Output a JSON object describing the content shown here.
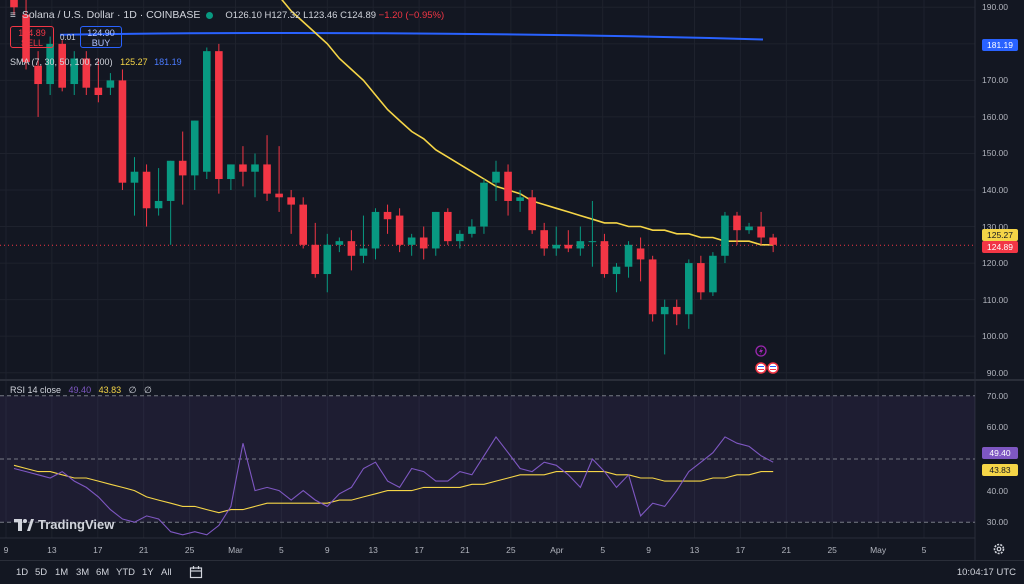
{
  "symbol": {
    "name": "Solana / U.S. Dollar · 1D · COINBASE",
    "open_label": "O",
    "open": "126.10",
    "high_label": "H",
    "high": "127.32",
    "low_label": "L",
    "low": "123.46",
    "close_label": "C",
    "close": "124.89",
    "change": "−1.20 (−0.95%)"
  },
  "trade": {
    "sell_price": "124.89",
    "sell_label": "SELL",
    "spread": "0.01",
    "buy_price": "124.90",
    "buy_label": "BUY"
  },
  "sma": {
    "label": "SMA (7, 30, 50, 100, 200)",
    "v1": "125.27",
    "v2": "181.19"
  },
  "rsi": {
    "label": "RSI 14 close",
    "v1": "49.40",
    "v2": "43.83",
    "v3": "∅",
    "v4": "∅"
  },
  "price_axis": [
    "190.00",
    "180.00",
    "170.00",
    "160.00",
    "150.00",
    "140.00",
    "130.00",
    "120.00",
    "110.00",
    "100.00",
    "90.00"
  ],
  "price_badges": {
    "sma200": "181.19",
    "sma": "125.27",
    "last": "124.89"
  },
  "rsi_axis": [
    "70.00",
    "60.00",
    "40.00",
    "30.00"
  ],
  "rsi_badges": {
    "rsi": "49.40",
    "ma": "43.83"
  },
  "time_axis": [
    "9",
    "13",
    "17",
    "21",
    "25",
    "Mar",
    "5",
    "9",
    "13",
    "17",
    "21",
    "25",
    "Apr",
    "5",
    "9",
    "13",
    "17",
    "21",
    "25",
    "May",
    "5"
  ],
  "logo": "TradingView",
  "ranges": [
    "1D",
    "5D",
    "1M",
    "3M",
    "6M",
    "YTD",
    "1Y",
    "All"
  ],
  "clock": "10:04:17 UTC",
  "colors": {
    "bg": "#131722",
    "up": "#089981",
    "down": "#f23645",
    "sma_fast": "#f5d547",
    "sma_slow": "#2962ff",
    "rsi_line": "#7e57c2",
    "rsi_ma": "#f5d547"
  },
  "chart_data": {
    "type": "candlestick",
    "ylim": [
      88,
      192
    ],
    "candles": [
      {
        "o": 203,
        "h": 205,
        "l": 188,
        "c": 190
      },
      {
        "o": 188,
        "h": 192,
        "l": 173,
        "c": 175
      },
      {
        "o": 174,
        "h": 178,
        "l": 160,
        "c": 169
      },
      {
        "o": 169,
        "h": 182,
        "l": 166,
        "c": 180
      },
      {
        "o": 180,
        "h": 181,
        "l": 167,
        "c": 168
      },
      {
        "o": 169,
        "h": 178,
        "l": 166,
        "c": 176
      },
      {
        "o": 176,
        "h": 178,
        "l": 166,
        "c": 168
      },
      {
        "o": 168,
        "h": 176,
        "l": 164,
        "c": 166
      },
      {
        "o": 168,
        "h": 172,
        "l": 166,
        "c": 170
      },
      {
        "o": 170,
        "h": 173,
        "l": 140,
        "c": 142
      },
      {
        "o": 142,
        "h": 149,
        "l": 133,
        "c": 145
      },
      {
        "o": 145,
        "h": 147,
        "l": 130,
        "c": 135
      },
      {
        "o": 135,
        "h": 146,
        "l": 133,
        "c": 137
      },
      {
        "o": 137,
        "h": 148,
        "l": 125,
        "c": 148
      },
      {
        "o": 148,
        "h": 156,
        "l": 136,
        "c": 144
      },
      {
        "o": 144,
        "h": 159,
        "l": 140,
        "c": 159
      },
      {
        "o": 145,
        "h": 179,
        "l": 143,
        "c": 178
      },
      {
        "o": 178,
        "h": 180,
        "l": 139,
        "c": 143
      },
      {
        "o": 143,
        "h": 147,
        "l": 140,
        "c": 147
      },
      {
        "o": 147,
        "h": 152,
        "l": 141,
        "c": 145
      },
      {
        "o": 145,
        "h": 150,
        "l": 138,
        "c": 147
      },
      {
        "o": 147,
        "h": 155,
        "l": 137,
        "c": 139
      },
      {
        "o": 139,
        "h": 152,
        "l": 134,
        "c": 138
      },
      {
        "o": 138,
        "h": 140,
        "l": 128,
        "c": 136
      },
      {
        "o": 136,
        "h": 138,
        "l": 124,
        "c": 125
      },
      {
        "o": 125,
        "h": 131,
        "l": 116,
        "c": 117
      },
      {
        "o": 117,
        "h": 128,
        "l": 112,
        "c": 125
      },
      {
        "o": 125,
        "h": 127,
        "l": 123,
        "c": 126
      },
      {
        "o": 126,
        "h": 129,
        "l": 118,
        "c": 122
      },
      {
        "o": 122,
        "h": 133,
        "l": 120,
        "c": 124
      },
      {
        "o": 124,
        "h": 135,
        "l": 121,
        "c": 134
      },
      {
        "o": 134,
        "h": 136,
        "l": 128,
        "c": 132
      },
      {
        "o": 133,
        "h": 135,
        "l": 123,
        "c": 125
      },
      {
        "o": 125,
        "h": 128,
        "l": 122,
        "c": 127
      },
      {
        "o": 127,
        "h": 130,
        "l": 121,
        "c": 124
      },
      {
        "o": 124,
        "h": 134,
        "l": 122,
        "c": 134
      },
      {
        "o": 134,
        "h": 135,
        "l": 125,
        "c": 126
      },
      {
        "o": 126,
        "h": 129,
        "l": 124,
        "c": 128
      },
      {
        "o": 128,
        "h": 132,
        "l": 127,
        "c": 130
      },
      {
        "o": 130,
        "h": 143,
        "l": 128,
        "c": 142
      },
      {
        "o": 142,
        "h": 148,
        "l": 137,
        "c": 145
      },
      {
        "o": 145,
        "h": 147,
        "l": 133,
        "c": 137
      },
      {
        "o": 137,
        "h": 140,
        "l": 134,
        "c": 138
      },
      {
        "o": 138,
        "h": 140,
        "l": 128,
        "c": 129
      },
      {
        "o": 129,
        "h": 131,
        "l": 122,
        "c": 124
      },
      {
        "o": 124,
        "h": 130,
        "l": 122,
        "c": 125
      },
      {
        "o": 125,
        "h": 129,
        "l": 123,
        "c": 124
      },
      {
        "o": 124,
        "h": 130,
        "l": 122,
        "c": 126
      },
      {
        "o": 126,
        "h": 137,
        "l": 119,
        "c": 126
      },
      {
        "o": 126,
        "h": 128,
        "l": 116,
        "c": 117
      },
      {
        "o": 117,
        "h": 120,
        "l": 112,
        "c": 119
      },
      {
        "o": 119,
        "h": 126,
        "l": 116,
        "c": 125
      },
      {
        "o": 124,
        "h": 127,
        "l": 115,
        "c": 121
      },
      {
        "o": 121,
        "h": 122,
        "l": 104,
        "c": 106
      },
      {
        "o": 106,
        "h": 110,
        "l": 95,
        "c": 108
      },
      {
        "o": 108,
        "h": 110,
        "l": 103,
        "c": 106
      },
      {
        "o": 106,
        "h": 121,
        "l": 102,
        "c": 120
      },
      {
        "o": 120,
        "h": 122,
        "l": 110,
        "c": 112
      },
      {
        "o": 112,
        "h": 123,
        "l": 111,
        "c": 122
      },
      {
        "o": 122,
        "h": 134,
        "l": 120,
        "c": 133
      },
      {
        "o": 133,
        "h": 134,
        "l": 125,
        "c": 129
      },
      {
        "o": 129,
        "h": 131,
        "l": 128,
        "c": 130
      },
      {
        "o": 130,
        "h": 134,
        "l": 125,
        "c": 127
      },
      {
        "o": 127,
        "h": 128,
        "l": 123,
        "c": 125
      }
    ],
    "sma_fast": [
      232,
      227,
      222,
      216,
      211,
      206,
      201,
      197,
      193,
      189,
      186,
      183,
      180,
      176,
      173,
      170,
      166,
      162,
      159,
      156,
      154,
      151,
      149,
      147,
      145,
      143,
      141,
      140,
      139,
      137,
      136,
      135,
      134,
      133,
      132,
      131,
      131,
      130,
      130,
      129,
      129,
      128,
      128,
      127,
      127,
      126,
      126,
      126,
      125,
      125
    ],
    "sma_slow": [
      181.2,
      181.2
    ],
    "rsi": [
      47,
      46,
      45,
      44,
      46,
      43,
      41,
      38,
      34,
      31,
      30,
      32,
      31,
      27,
      26,
      27,
      26,
      29,
      35,
      55,
      40,
      41,
      40,
      37,
      40,
      37,
      35,
      39,
      41,
      47,
      49,
      43,
      41,
      47,
      46,
      43,
      43,
      46,
      45,
      51,
      57,
      52,
      47,
      46,
      49,
      48,
      45,
      41,
      50,
      46,
      41,
      45,
      32,
      36,
      35,
      40,
      46,
      49,
      52,
      57,
      55,
      54,
      51,
      49
    ],
    "rsi_ma": [
      48,
      47,
      46,
      46,
      45,
      44,
      44,
      43,
      42,
      41,
      40,
      38,
      37,
      36,
      35,
      35,
      34,
      33,
      34,
      34,
      35,
      36,
      36,
      36,
      36,
      36,
      36,
      37,
      37,
      38,
      39,
      40,
      40,
      40,
      41,
      41,
      41,
      41,
      42,
      42,
      43,
      44,
      45,
      45,
      45,
      46,
      46,
      46,
      46,
      46,
      45,
      45,
      44,
      44,
      43,
      43,
      43,
      43,
      44,
      44,
      45,
      45,
      46,
      46
    ],
    "rsi_ylim": [
      25,
      75
    ]
  }
}
